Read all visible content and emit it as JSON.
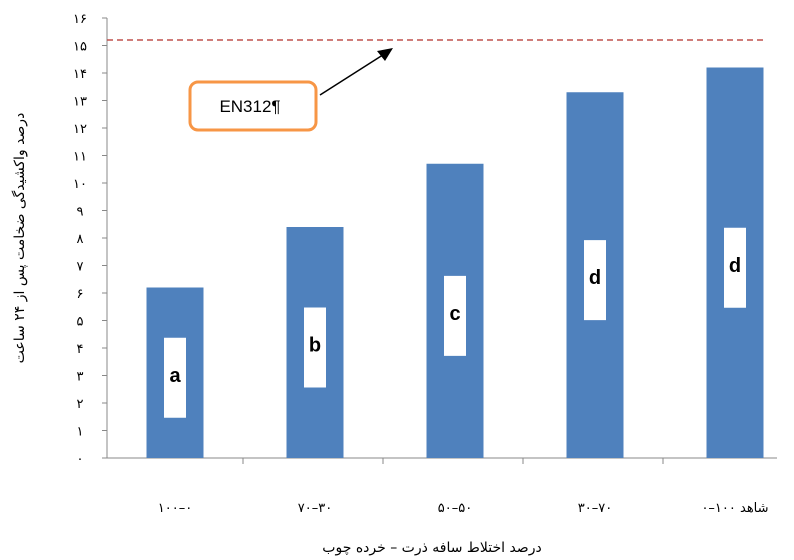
{
  "chart_data": {
    "type": "bar",
    "categories": [
      "۱۰۰–۰",
      "۷۰–۳۰",
      "۵۰–۵۰",
      "۳۰–۷۰",
      "شاهد ۱۰۰–۰"
    ],
    "values": [
      6.2,
      8.4,
      10.7,
      13.3,
      14.2
    ],
    "group_letters": [
      "a",
      "b",
      "c",
      "d",
      "d"
    ],
    "ylim": [
      0,
      16
    ],
    "yticks": [
      0,
      1,
      2,
      3,
      4,
      5,
      6,
      7,
      8,
      9,
      10,
      11,
      12,
      13,
      14,
      15,
      16
    ],
    "ytick_labels": [
      "۰",
      "۱",
      "۲",
      "۳",
      "۴",
      "۵",
      "۶",
      "۷",
      "۸",
      "۹",
      "۱۰",
      "۱۱",
      "۱۲",
      "۱۳",
      "۱۴",
      "۱۵",
      "۱۶"
    ],
    "xlabel": "درصد اختلاط سافه ذرت – خرده چوب",
    "ylabel": "درصد واکشیدگی ضخامت پس از ۲۴ ساعت",
    "reference_line": {
      "value": 15.2,
      "label": "EN312¶",
      "color": "#c0504d"
    },
    "grid": false,
    "colors": {
      "bar": "#4f81bd",
      "reference": "#c0504d",
      "callout_border": "#f79646"
    }
  }
}
